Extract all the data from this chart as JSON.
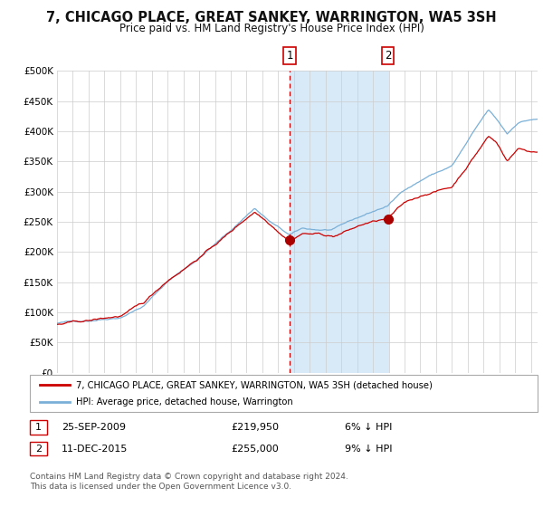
{
  "title": "7, CHICAGO PLACE, GREAT SANKEY, WARRINGTON, WA5 3SH",
  "subtitle": "Price paid vs. HM Land Registry's House Price Index (HPI)",
  "legend_line1": "7, CHICAGO PLACE, GREAT SANKEY, WARRINGTON, WA5 3SH (detached house)",
  "legend_line2": "HPI: Average price, detached house, Warrington",
  "transaction1_date": "25-SEP-2009",
  "transaction1_price": 219950,
  "transaction1_label": "6% ↓ HPI",
  "transaction2_date": "11-DEC-2015",
  "transaction2_price": 255000,
  "transaction2_label": "9% ↓ HPI",
  "footer1": "Contains HM Land Registry data © Crown copyright and database right 2024.",
  "footer2": "This data is licensed under the Open Government Licence v3.0.",
  "hpi_color": "#7ab0d8",
  "price_color": "#cc0000",
  "marker_color": "#aa0000",
  "vline_color": "#cc0000",
  "shade_color": "#d8eaf7",
  "grid_color": "#cccccc",
  "bg_color": "#ffffff",
  "label_box_color": "#cc0000",
  "ylim": [
    0,
    500000
  ],
  "year_start": 1995,
  "year_end": 2025,
  "transaction1_year": 2009.73,
  "transaction2_year": 2015.95,
  "hpi_targets": {
    "1995.0": 82000,
    "1997.0": 87000,
    "1999.0": 95000,
    "2000.5": 115000,
    "2002.0": 155000,
    "2004.0": 195000,
    "2006.0": 240000,
    "2007.5": 278000,
    "2008.5": 255000,
    "2009.73": 232000,
    "2010.5": 242000,
    "2011.5": 240000,
    "2012.5": 240000,
    "2013.5": 252000,
    "2014.5": 263000,
    "2015.95": 278000,
    "2017.0": 305000,
    "2018.5": 328000,
    "2020.0": 345000,
    "2021.5": 405000,
    "2022.3": 435000,
    "2022.8": 420000,
    "2023.5": 395000,
    "2024.2": 415000,
    "2025.0": 420000
  },
  "red_targets": {
    "1995.0": 80000,
    "1997.0": 84000,
    "1999.0": 91000,
    "2000.5": 110000,
    "2002.0": 148000,
    "2004.0": 188000,
    "2006.0": 230000,
    "2007.5": 264000,
    "2008.5": 245000,
    "2009.73": 219950,
    "2010.5": 233000,
    "2011.5": 232000,
    "2012.5": 228000,
    "2013.5": 238000,
    "2014.5": 248000,
    "2015.95": 255000,
    "2017.0": 278000,
    "2018.5": 295000,
    "2020.0": 305000,
    "2021.5": 360000,
    "2022.3": 390000,
    "2022.8": 380000,
    "2023.5": 350000,
    "2024.2": 370000,
    "2025.0": 365000
  }
}
